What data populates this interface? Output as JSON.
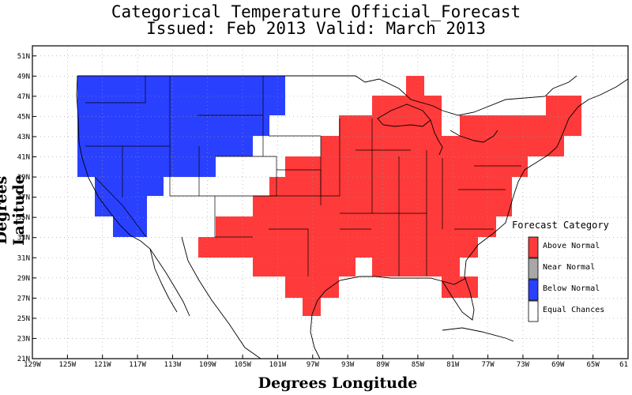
{
  "title": "Categorical Temperature Official_Forecast",
  "subtitle": "Issued: Feb 2013 Valid: March 2013",
  "axes": {
    "xlabel": "Degrees Longitude",
    "ylabel": "Degrees Latitude",
    "x_ticks": [
      "129W",
      "125W",
      "121W",
      "117W",
      "113W",
      "109W",
      "105W",
      "101W",
      "97W",
      "93W",
      "89W",
      "85W",
      "81W",
      "77W",
      "73W",
      "69W",
      "65W",
      "61"
    ],
    "y_ticks": [
      "21N",
      "23N",
      "25N",
      "27N",
      "29N",
      "31N",
      "33N",
      "35N",
      "37N",
      "39N",
      "41N",
      "43N",
      "45N",
      "47N",
      "49N",
      "51N"
    ],
    "x_range": [
      -129,
      -61
    ],
    "y_range": [
      21,
      52
    ],
    "grid": true
  },
  "legend": {
    "title": "Forecast Category",
    "items": [
      {
        "label": "Above Normal",
        "color": "#ff3a3a"
      },
      {
        "label": "Near Normal",
        "color": "#a8a8a8"
      },
      {
        "label": "Below Normal",
        "color": "#2a40ff"
      },
      {
        "label": "Equal Chances",
        "color": "#ffffff"
      }
    ]
  },
  "colors": {
    "above": "#ff3a3a",
    "below": "#2a40ff",
    "grid": "#9a9a9a"
  }
}
